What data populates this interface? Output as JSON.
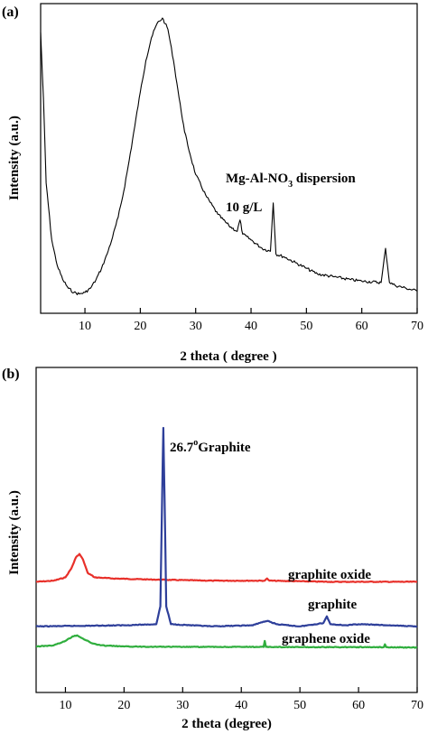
{
  "chart_data": [
    {
      "panel_label": "(a)",
      "type": "line",
      "xlabel": "2 theta ( degree )",
      "ylabel": "Intensity (a.u.)",
      "xlim": [
        2,
        70
      ],
      "xticks": [
        10,
        20,
        30,
        40,
        50,
        60,
        70
      ],
      "ylim": [
        0,
        1
      ],
      "grid": false,
      "annotations": [
        "Mg-Al-NO3 dispersion",
        "10 g/L"
      ],
      "annotation_parts": {
        "prefix": "Mg-Al-NO",
        "subscript": "3",
        "suffix": " dispersion",
        "line2": "10 g/L"
      },
      "series": [
        {
          "color": "#000000",
          "x": [
            2.0,
            2.5,
            3.0,
            4.0,
            5.0,
            6.0,
            7.0,
            8.0,
            9.0,
            10.0,
            11.0,
            12.0,
            13.0,
            14.0,
            15.0,
            16.0,
            17.0,
            18.0,
            19.0,
            20.0,
            21.0,
            22.0,
            23.0,
            24.0,
            24.5,
            25.0,
            26.0,
            27.0,
            28.0,
            29.0,
            30.0,
            32.0,
            34.0,
            36.0,
            37.5,
            38.0,
            38.5,
            40.0,
            42.0,
            43.5,
            44.0,
            44.5,
            46.0,
            48.0,
            50.0,
            52.0,
            55.0,
            58.0,
            60.0,
            63.5,
            64.3,
            65.0,
            66.0,
            68.0,
            70.0
          ],
          "y": [
            0.95,
            0.72,
            0.42,
            0.22,
            0.13,
            0.08,
            0.05,
            0.035,
            0.03,
            0.035,
            0.05,
            0.08,
            0.12,
            0.17,
            0.23,
            0.3,
            0.39,
            0.5,
            0.62,
            0.74,
            0.85,
            0.93,
            0.98,
            1.0,
            0.98,
            0.96,
            0.85,
            0.72,
            0.6,
            0.52,
            0.45,
            0.37,
            0.31,
            0.27,
            0.25,
            0.29,
            0.24,
            0.22,
            0.19,
            0.18,
            0.35,
            0.17,
            0.16,
            0.14,
            0.12,
            0.1,
            0.09,
            0.08,
            0.075,
            0.07,
            0.19,
            0.07,
            0.06,
            0.05,
            0.04
          ]
        }
      ]
    },
    {
      "panel_label": "(b)",
      "type": "line",
      "xlabel": "2 theta (degree)",
      "ylabel": "Intensity (a.u.)",
      "xlim": [
        5,
        70
      ],
      "xticks": [
        10,
        20,
        30,
        40,
        50,
        60,
        70
      ],
      "ylim": [
        0,
        1
      ],
      "grid": false,
      "annotations": [
        "26.7°Graphite"
      ],
      "annotation_parts": {
        "value": "26.7",
        "degree": "o",
        "name": "Graphite"
      },
      "series": [
        {
          "name": "graphite oxide",
          "color": "#e8302a",
          "x": [
            5.0,
            8.0,
            10.0,
            11.0,
            11.8,
            12.4,
            13.0,
            13.8,
            15.0,
            18.0,
            25.0,
            35.0,
            44.0,
            44.4,
            44.8,
            55.0,
            70.0
          ],
          "y": [
            0.31,
            0.315,
            0.33,
            0.37,
            0.42,
            0.435,
            0.41,
            0.35,
            0.33,
            0.325,
            0.32,
            0.315,
            0.315,
            0.325,
            0.315,
            0.31,
            0.31
          ]
        },
        {
          "name": "graphite",
          "color": "#2e3f9a",
          "x": [
            5.0,
            20.0,
            25.5,
            26.2,
            26.5,
            26.7,
            26.9,
            27.2,
            28.0,
            35.0,
            42.0,
            43.0,
            44.5,
            46.0,
            50.0,
            54.0,
            54.6,
            55.2,
            58.0,
            60.0,
            70.0
          ],
          "y": [
            0.11,
            0.115,
            0.12,
            0.2,
            0.7,
            1.0,
            0.7,
            0.2,
            0.12,
            0.11,
            0.115,
            0.125,
            0.135,
            0.12,
            0.11,
            0.125,
            0.155,
            0.12,
            0.115,
            0.12,
            0.11
          ]
        },
        {
          "name": "graphene oxide",
          "color": "#2fae3d",
          "x": [
            5.0,
            8.0,
            10.0,
            11.2,
            12.0,
            13.0,
            14.5,
            16.0,
            20.0,
            30.0,
            40.0,
            43.8,
            44.0,
            44.2,
            50.0,
            64.3,
            64.5,
            64.7,
            70.0
          ],
          "y": [
            0.02,
            0.025,
            0.045,
            0.065,
            0.07,
            0.055,
            0.035,
            0.025,
            0.02,
            0.018,
            0.018,
            0.018,
            0.045,
            0.018,
            0.017,
            0.017,
            0.03,
            0.017,
            0.015
          ]
        }
      ]
    }
  ]
}
